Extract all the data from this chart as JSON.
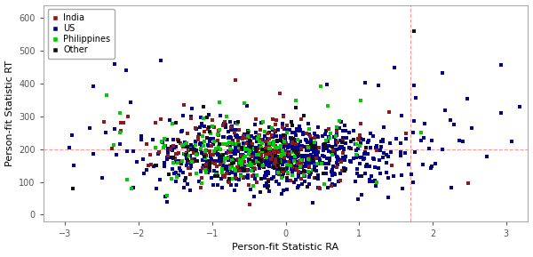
{
  "title": "",
  "xlabel": "Person-fit Statistic RA",
  "ylabel": "Person-fit Statistic RT",
  "xlim": [
    -3.3,
    3.3
  ],
  "ylim": [
    -20,
    640
  ],
  "xticks": [
    -3,
    -2,
    -1,
    0,
    1,
    2,
    3
  ],
  "yticks": [
    0,
    100,
    200,
    300,
    400,
    500,
    600
  ],
  "vline_x": 1.7,
  "hline_y": 200,
  "ref_line_color": "#FF9999",
  "ref_line_style": "--",
  "categories": [
    "India",
    "US",
    "Philippines",
    "Other"
  ],
  "colors": [
    "#8B1A1A",
    "#00008B",
    "#00CC00",
    "#111111"
  ],
  "marker": "s",
  "marker_size": 3,
  "seed": 42,
  "n_india": 220,
  "n_us": 750,
  "n_philippines": 160,
  "n_other": 90,
  "background_color": "#FFFFFF",
  "legend_fontsize": 7,
  "axis_fontsize": 8,
  "tick_fontsize": 7
}
